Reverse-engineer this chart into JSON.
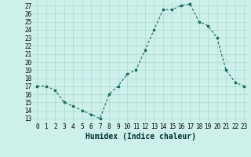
{
  "x": [
    0,
    1,
    2,
    3,
    4,
    5,
    6,
    7,
    8,
    9,
    10,
    11,
    12,
    13,
    14,
    15,
    16,
    17,
    18,
    19,
    20,
    21,
    22,
    23
  ],
  "y": [
    17,
    17,
    16.5,
    15,
    14.5,
    14,
    13.5,
    13,
    16,
    17,
    18.5,
    19,
    21.5,
    24,
    26.5,
    26.5,
    27,
    27.2,
    25,
    24.5,
    23,
    19,
    17.5,
    17
  ],
  "xlabel": "Humidex (Indice chaleur)",
  "ylim_min": 12.5,
  "ylim_max": 27.5,
  "xlim_min": -0.5,
  "xlim_max": 23.5,
  "yticks": [
    13,
    14,
    15,
    16,
    17,
    18,
    19,
    20,
    21,
    22,
    23,
    24,
    25,
    26,
    27
  ],
  "xticks": [
    0,
    1,
    2,
    3,
    4,
    5,
    6,
    7,
    8,
    9,
    10,
    11,
    12,
    13,
    14,
    15,
    16,
    17,
    18,
    19,
    20,
    21,
    22,
    23
  ],
  "line_color": "#1a6b5a",
  "bg_color": "#cef0eb",
  "grid_color": "#aad8d0",
  "marker": "s",
  "marker_size": 2.0,
  "line_width": 0.8,
  "xlabel_fontsize": 7,
  "tick_fontsize": 5.5
}
